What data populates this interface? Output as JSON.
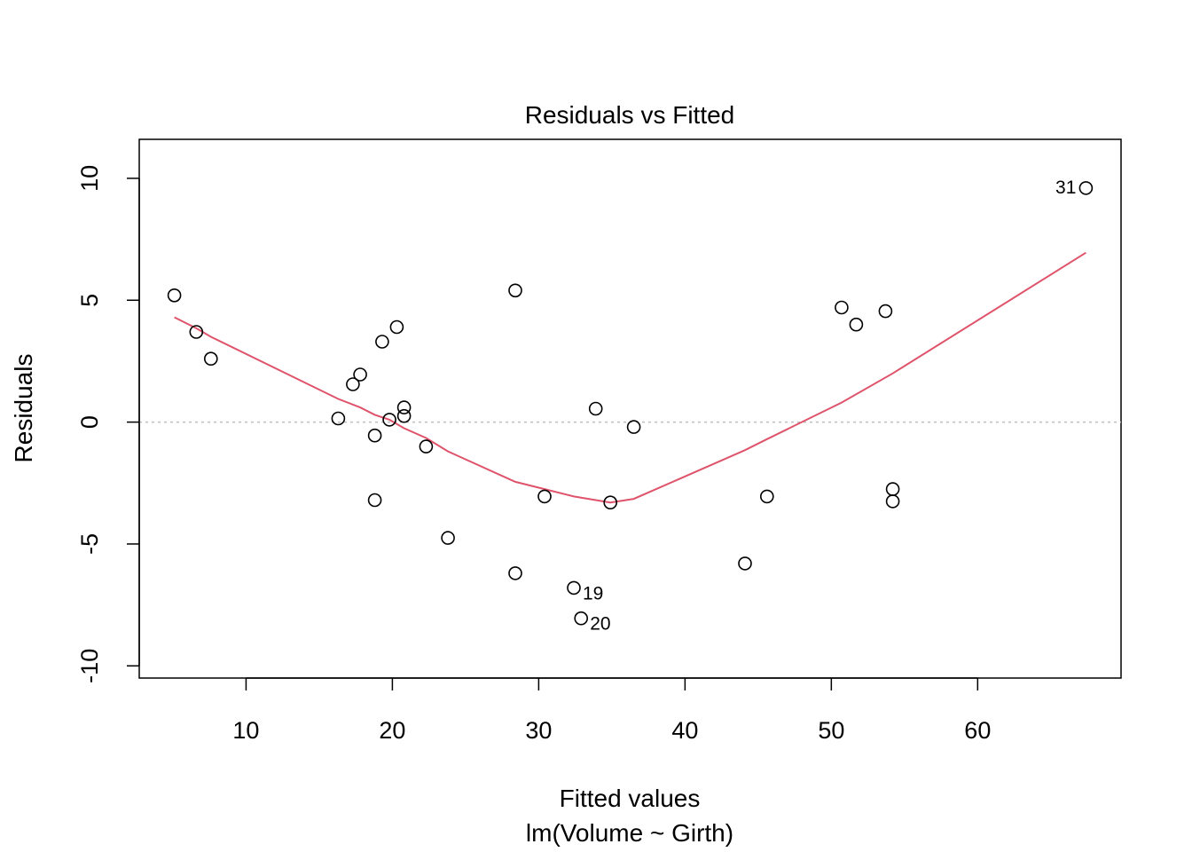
{
  "chart_data": {
    "type": "scatter",
    "title": "Residuals vs Fitted",
    "xlabel": "Fitted values",
    "subtitle": "lm(Volume ~ Girth)",
    "ylabel": "Residuals",
    "xlim": [
      2.7,
      69.8
    ],
    "ylim": [
      -10.5,
      11.6
    ],
    "xticks": [
      10,
      20,
      30,
      40,
      50,
      60
    ],
    "yticks": [
      -10,
      -5,
      0,
      5,
      10
    ],
    "reference_line_y": 0,
    "grid": false,
    "colors": {
      "points": "#000000",
      "smooth": "#DF536B",
      "reference": "#BEBEBE"
    },
    "points": [
      {
        "x": 5.1,
        "y": 5.2
      },
      {
        "x": 6.6,
        "y": 3.7
      },
      {
        "x": 7.6,
        "y": 2.6
      },
      {
        "x": 16.3,
        "y": 0.15
      },
      {
        "x": 17.3,
        "y": 1.55
      },
      {
        "x": 17.8,
        "y": 1.95
      },
      {
        "x": 18.8,
        "y": -0.55
      },
      {
        "x": 18.8,
        "y": -3.2
      },
      {
        "x": 19.3,
        "y": 3.3
      },
      {
        "x": 19.8,
        "y": 0.1
      },
      {
        "x": 20.3,
        "y": 3.9
      },
      {
        "x": 20.8,
        "y": 0.6
      },
      {
        "x": 20.8,
        "y": 0.25
      },
      {
        "x": 22.3,
        "y": -1.0
      },
      {
        "x": 23.8,
        "y": -4.75
      },
      {
        "x": 28.4,
        "y": 5.4
      },
      {
        "x": 28.4,
        "y": -6.2
      },
      {
        "x": 30.4,
        "y": -3.05
      },
      {
        "x": 32.4,
        "y": -6.8,
        "label": "19"
      },
      {
        "x": 32.9,
        "y": -8.05,
        "label": "20"
      },
      {
        "x": 33.9,
        "y": 0.55
      },
      {
        "x": 34.9,
        "y": -3.3
      },
      {
        "x": 36.5,
        "y": -0.2
      },
      {
        "x": 44.1,
        "y": -5.8
      },
      {
        "x": 45.6,
        "y": -3.05
      },
      {
        "x": 50.7,
        "y": 4.7
      },
      {
        "x": 51.7,
        "y": 4.0
      },
      {
        "x": 53.7,
        "y": 4.55
      },
      {
        "x": 54.2,
        "y": -2.75
      },
      {
        "x": 54.2,
        "y": -3.25
      },
      {
        "x": 67.4,
        "y": 9.6,
        "label": "31"
      }
    ],
    "smooth_line": [
      {
        "x": 5.1,
        "y": 4.3
      },
      {
        "x": 6.6,
        "y": 3.85
      },
      {
        "x": 7.6,
        "y": 3.5
      },
      {
        "x": 16.3,
        "y": 0.95
      },
      {
        "x": 17.8,
        "y": 0.6
      },
      {
        "x": 18.8,
        "y": 0.3
      },
      {
        "x": 19.8,
        "y": 0.1
      },
      {
        "x": 20.8,
        "y": -0.25
      },
      {
        "x": 22.3,
        "y": -0.65
      },
      {
        "x": 23.8,
        "y": -1.2
      },
      {
        "x": 28.4,
        "y": -2.45
      },
      {
        "x": 30.4,
        "y": -2.75
      },
      {
        "x": 32.4,
        "y": -3.05
      },
      {
        "x": 34.9,
        "y": -3.3
      },
      {
        "x": 36.5,
        "y": -3.15
      },
      {
        "x": 44.1,
        "y": -1.15
      },
      {
        "x": 45.6,
        "y": -0.7
      },
      {
        "x": 50.7,
        "y": 0.8
      },
      {
        "x": 54.2,
        "y": 2.0
      },
      {
        "x": 67.4,
        "y": 6.95
      }
    ]
  }
}
